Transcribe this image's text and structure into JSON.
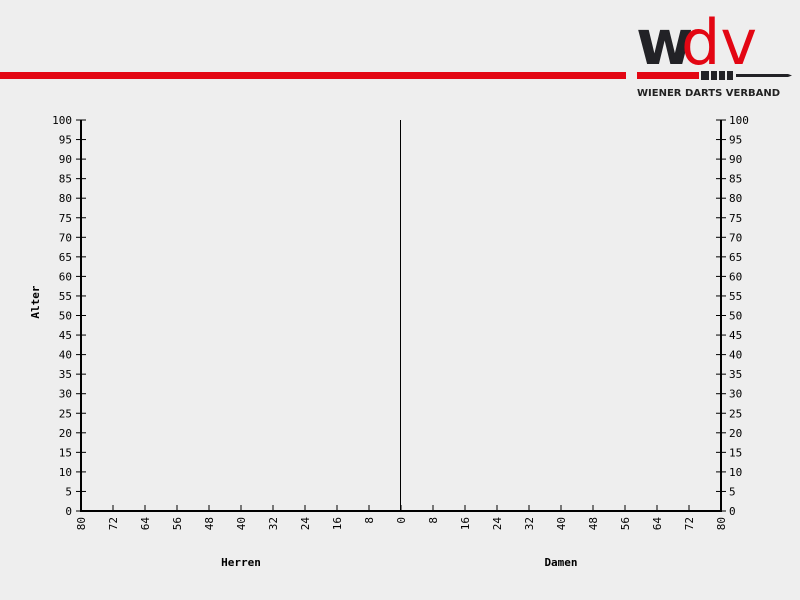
{
  "logo": {
    "text": "wdv",
    "subtitle": "WIENER DARTS VERBAND"
  },
  "colors": {
    "brand_red": "#e30613",
    "brand_dark": "#222226",
    "axis": "#000000",
    "background": "#eeeeee"
  },
  "chart_data": {
    "type": "bar",
    "subtype": "population-pyramid",
    "ylabel": "Alter",
    "ylim": [
      0,
      100
    ],
    "yticks": [
      0,
      5,
      10,
      15,
      20,
      25,
      30,
      35,
      40,
      45,
      50,
      55,
      60,
      65,
      70,
      75,
      80,
      85,
      90,
      95,
      100
    ],
    "xlim": [
      -80,
      80
    ],
    "xticks": [
      80,
      72,
      64,
      56,
      48,
      40,
      32,
      24,
      16,
      8,
      0,
      8,
      16,
      24,
      32,
      40,
      48,
      56,
      64,
      72,
      80
    ],
    "sides": [
      {
        "label": "Herren",
        "values": []
      },
      {
        "label": "Damen",
        "values": []
      }
    ],
    "grid": false
  }
}
